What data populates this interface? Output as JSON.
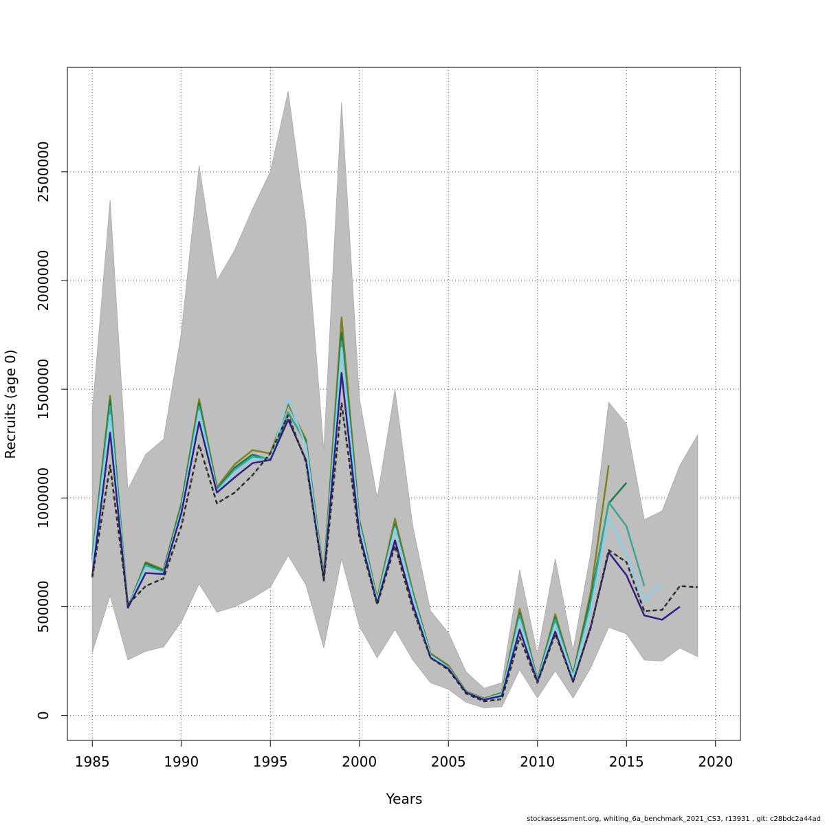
{
  "chart_data": {
    "type": "line",
    "xlabel": "Years",
    "ylabel": "Recruits (age 0)",
    "xlim": [
      1983.6,
      2021.4
    ],
    "ylim": [
      -115000,
      2980000
    ],
    "x_ticks": [
      1985,
      1990,
      1995,
      2000,
      2005,
      2010,
      2015,
      2020
    ],
    "y_ticks": [
      0,
      500000,
      1000000,
      1500000,
      2000000,
      2500000
    ],
    "y_tick_labels": [
      "0",
      "500000",
      "1000000",
      "1500000",
      "2000000",
      "2500000"
    ],
    "grid": true,
    "confidence_band": {
      "x": [
        1985,
        1986,
        1987,
        1988,
        1989,
        1990,
        1991,
        1992,
        1993,
        1994,
        1995,
        1996,
        1997,
        1998,
        1999,
        2000,
        2001,
        2002,
        2003,
        2004,
        2005,
        2006,
        2007,
        2008,
        2009,
        2010,
        2011,
        2012,
        2013,
        2014,
        2015,
        2016,
        2017,
        2018,
        2019
      ],
      "upper": [
        1400000,
        2370000,
        1040000,
        1200000,
        1270000,
        1760000,
        2530000,
        2000000,
        2140000,
        2330000,
        2500000,
        2870000,
        2260000,
        1220000,
        2820000,
        1460000,
        1000000,
        1500000,
        870000,
        480000,
        380000,
        200000,
        125000,
        150000,
        670000,
        280000,
        720000,
        300000,
        750000,
        1440000,
        1340000,
        900000,
        940000,
        1150000,
        1290000
      ],
      "lower": [
        290000,
        550000,
        255000,
        295000,
        315000,
        430000,
        605000,
        475000,
        500000,
        540000,
        590000,
        735000,
        600000,
        310000,
        720000,
        410000,
        265000,
        395000,
        255000,
        150000,
        120000,
        60000,
        35000,
        40000,
        210000,
        80000,
        205000,
        80000,
        220000,
        405000,
        375000,
        255000,
        250000,
        310000,
        270000
      ],
      "color": "#bebebe"
    },
    "series": [
      {
        "style": "solid",
        "color": "#808020",
        "x": [
          1985,
          1986,
          1987,
          1988,
          1989,
          1990,
          1991,
          1992,
          1993,
          1994,
          1995,
          1996,
          1997,
          1998,
          1999,
          2000,
          2001,
          2002,
          2003,
          2004,
          2005,
          2006,
          2007,
          2008,
          2009,
          2010,
          2011,
          2012,
          2013,
          2014
        ],
        "values": [
          735000,
          1470000,
          495000,
          705000,
          670000,
          975000,
          1455000,
          1050000,
          1155000,
          1220000,
          1205000,
          1430000,
          1270000,
          645000,
          1830000,
          900000,
          540000,
          905000,
          570000,
          285000,
          230000,
          110000,
          78000,
          105000,
          490000,
          165000,
          465000,
          190000,
          570000,
          1150000
        ]
      },
      {
        "style": "solid",
        "color": "#1a7a45",
        "x": [
          1985,
          1986,
          1987,
          1988,
          1989,
          1990,
          1991,
          1992,
          1993,
          1994,
          1995,
          1996,
          1997,
          1998,
          1999,
          2000,
          2001,
          2002,
          2003,
          2004,
          2005,
          2006,
          2007,
          2008,
          2009,
          2010,
          2011,
          2012,
          2013,
          2014,
          2015
        ],
        "values": [
          720000,
          1450000,
          495000,
          700000,
          665000,
          965000,
          1435000,
          1040000,
          1140000,
          1200000,
          1175000,
          1390000,
          1260000,
          635000,
          1760000,
          890000,
          530000,
          880000,
          560000,
          280000,
          225000,
          108000,
          76000,
          102000,
          470000,
          162000,
          450000,
          185000,
          545000,
          975000,
          1070000
        ]
      },
      {
        "style": "solid",
        "color": "#3aa595",
        "x": [
          1985,
          1986,
          1987,
          1988,
          1989,
          1990,
          1991,
          1992,
          1993,
          1994,
          1995,
          1996,
          1997,
          1998,
          1999,
          2000,
          2001,
          2002,
          2003,
          2004,
          2005,
          2006,
          2007,
          2008,
          2009,
          2010,
          2011,
          2012,
          2013,
          2014,
          2015,
          2016
        ],
        "values": [
          715000,
          1420000,
          495000,
          690000,
          660000,
          955000,
          1420000,
          1035000,
          1130000,
          1190000,
          1180000,
          1395000,
          1250000,
          630000,
          1720000,
          880000,
          530000,
          870000,
          555000,
          278000,
          222000,
          107000,
          75000,
          100000,
          460000,
          160000,
          440000,
          180000,
          520000,
          980000,
          870000,
          595000
        ]
      },
      {
        "style": "solid",
        "color": "#86d0ee",
        "x": [
          1985,
          1986,
          1987,
          1988,
          1989,
          1990,
          1991,
          1992,
          1993,
          1994,
          1995,
          1996,
          1997,
          1998,
          1999,
          2000,
          2001,
          2002,
          2003,
          2004,
          2005,
          2006,
          2007,
          2008,
          2009,
          2010,
          2011,
          2012,
          2013,
          2014,
          2015,
          2016,
          2017
        ],
        "values": [
          705000,
          1380000,
          495000,
          680000,
          655000,
          945000,
          1400000,
          1030000,
          1120000,
          1180000,
          1175000,
          1455000,
          1240000,
          625000,
          1690000,
          875000,
          525000,
          860000,
          545000,
          275000,
          220000,
          106000,
          74000,
          98000,
          440000,
          158000,
          420000,
          178000,
          490000,
          910000,
          740000,
          525000,
          615000
        ]
      },
      {
        "style": "solid",
        "color": "#2e1f80",
        "x": [
          1985,
          1986,
          1987,
          1988,
          1989,
          1990,
          1991,
          1992,
          1993,
          1994,
          1995,
          1996,
          1997,
          1998,
          1999,
          2000,
          2001,
          2002,
          2003,
          2004,
          2005,
          2006,
          2007,
          2008,
          2009,
          2010,
          2011,
          2012,
          2013,
          2014,
          2015,
          2016,
          2017,
          2018
        ],
        "values": [
          640000,
          1300000,
          495000,
          655000,
          650000,
          930000,
          1350000,
          1025000,
          1095000,
          1160000,
          1175000,
          1360000,
          1175000,
          625000,
          1575000,
          835000,
          515000,
          805000,
          510000,
          265000,
          215000,
          105000,
          72000,
          90000,
          395000,
          155000,
          385000,
          155000,
          410000,
          750000,
          645000,
          460000,
          440000,
          500000
        ]
      },
      {
        "style": "dashed",
        "color": "#000000",
        "x": [
          1985,
          1986,
          1987,
          1988,
          1989,
          1990,
          1991,
          1992,
          1993,
          1994,
          1995,
          1996,
          1997,
          1998,
          1999,
          2000,
          2001,
          2002,
          2003,
          2004,
          2005,
          2006,
          2007,
          2008,
          2009,
          2010,
          2011,
          2012,
          2013,
          2014,
          2015,
          2016,
          2017,
          2018,
          2019
        ],
        "values": [
          635000,
          1150000,
          510000,
          595000,
          630000,
          870000,
          1245000,
          975000,
          1025000,
          1105000,
          1205000,
          1380000,
          1165000,
          620000,
          1435000,
          815000,
          510000,
          780000,
          490000,
          265000,
          210000,
          100000,
          65000,
          75000,
          360000,
          150000,
          375000,
          155000,
          405000,
          760000,
          705000,
          480000,
          485000,
          595000,
          590000
        ]
      }
    ]
  },
  "footer": "stockassessment.org, whiting_6a_benchmark_2021_CS3, r13931 , git: c28bdc2a44ad"
}
